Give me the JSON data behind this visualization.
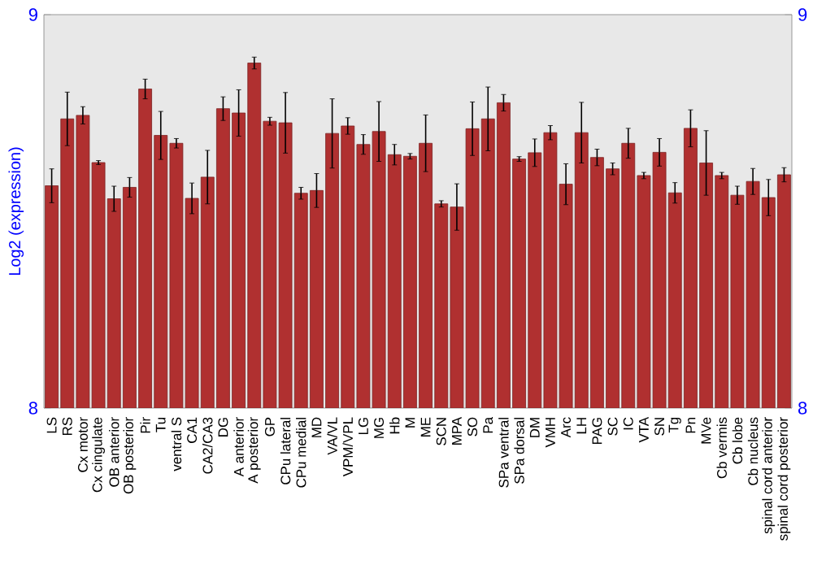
{
  "chart_data": {
    "type": "bar",
    "ylabel": "Log2 (expression)",
    "categories": [
      "LS",
      "RS",
      "Cx motor",
      "Cx cingulate",
      "OB anterior",
      "OB posterior",
      "Pir",
      "Tu",
      "ventral S",
      "CA1",
      "CA2/CA3",
      "DG",
      "A anterior",
      "A posterior",
      "GP",
      "CPu lateral",
      "CPu medial",
      "MD",
      "VA/VL",
      "VPM/VPL",
      "LG",
      "MG",
      "Hb",
      "M",
      "ME",
      "SCN",
      "MPA",
      "SO",
      "Pa",
      "SPa ventral",
      "SPa dorsal",
      "DM",
      "VMH",
      "Arc",
      "LH",
      "PAG",
      "SC",
      "IC",
      "VTA",
      "SN",
      "Tg",
      "Pn",
      "MVe",
      "Cb vermis",
      "Cb lobe",
      "Cb nucleus",
      "spinal cord anterior",
      "spinal cord posterior"
    ],
    "values": [
      8.565,
      8.735,
      8.744,
      8.624,
      8.532,
      8.561,
      8.811,
      8.693,
      8.673,
      8.533,
      8.587,
      8.761,
      8.75,
      8.877,
      8.729,
      8.725,
      8.546,
      8.553,
      8.698,
      8.717,
      8.67,
      8.703,
      8.644,
      8.64,
      8.673,
      8.519,
      8.511,
      8.71,
      8.735,
      8.776,
      8.633,
      8.649,
      8.7,
      8.569,
      8.7,
      8.637,
      8.608,
      8.673,
      8.591,
      8.65,
      8.547,
      8.711,
      8.623,
      8.591,
      8.541,
      8.576,
      8.535,
      8.593
    ],
    "errors": [
      0.043,
      0.068,
      0.022,
      0.005,
      0.032,
      0.025,
      0.025,
      0.061,
      0.012,
      0.039,
      0.068,
      0.03,
      0.059,
      0.015,
      0.01,
      0.077,
      0.015,
      0.043,
      0.088,
      0.021,
      0.025,
      0.076,
      0.026,
      0.007,
      0.072,
      0.008,
      0.059,
      0.068,
      0.081,
      0.021,
      0.006,
      0.035,
      0.018,
      0.052,
      0.077,
      0.021,
      0.015,
      0.038,
      0.008,
      0.035,
      0.026,
      0.047,
      0.082,
      0.008,
      0.023,
      0.033,
      0.046,
      0.018
    ],
    "color": "#b03030",
    "ylim": [
      8,
      9
    ],
    "yticks": [
      8,
      9
    ],
    "y2lim": [
      8,
      9
    ],
    "y2ticks": [
      8,
      9
    ],
    "grid": false
  }
}
